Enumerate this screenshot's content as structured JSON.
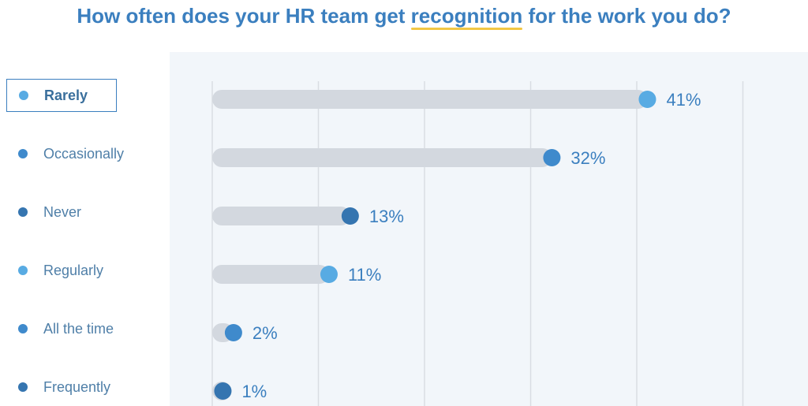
{
  "title": {
    "before": "How often does your HR team get ",
    "highlight": "recognition",
    "after": " for the work you do?"
  },
  "colors": {
    "title": "#3b7fbf",
    "highlight_underline": "#f2c744",
    "panel": "#f2f6fa",
    "track": "#d3d8df",
    "grid": "#d9dde3",
    "label": "#3b7fbf"
  },
  "legend": {
    "selected": "Rarely",
    "items": [
      {
        "label": "Rarely",
        "color": "#58abe3"
      },
      {
        "label": "Occasionally",
        "color": "#3f8acc"
      },
      {
        "label": "Never",
        "color": "#3575b0"
      },
      {
        "label": "Regularly",
        "color": "#58abe3"
      },
      {
        "label": "All the time",
        "color": "#3f8acc"
      },
      {
        "label": "Frequently",
        "color": "#3575b0"
      }
    ]
  },
  "chart_data": {
    "type": "bar",
    "orientation": "horizontal",
    "title": "How often does your HR team get recognition for the work you do?",
    "categories": [
      "Rarely",
      "Occasionally",
      "Never",
      "Regularly",
      "All the time",
      "Frequently"
    ],
    "values": [
      41,
      32,
      13,
      11,
      2,
      1
    ],
    "value_labels": [
      "41%",
      "32%",
      "13%",
      "11%",
      "2%",
      "1%"
    ],
    "unit": "%",
    "xlim": [
      0,
      50
    ],
    "grid": true,
    "legend_placement": "left"
  }
}
